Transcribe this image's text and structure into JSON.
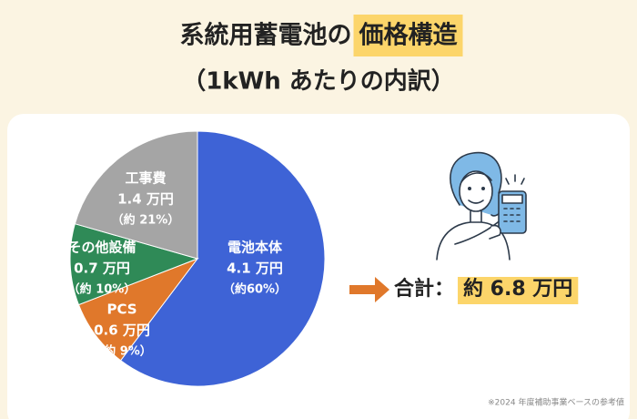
{
  "chart_data": {
    "type": "pie",
    "title": "系統用蓄電池の",
    "title_highlight": "価格構造",
    "subtitle": "（1kWh あたりの内訳）",
    "categories": [
      "電池本体",
      "PCS",
      "その他設備",
      "工事費"
    ],
    "values": [
      4.1,
      0.6,
      0.7,
      1.4
    ],
    "value_labels": [
      "4.1 万円",
      "0.6 万円",
      "0.7 万円",
      "1.4 万円"
    ],
    "percent_labels": [
      "（約60%）",
      "（約 9%）",
      "（約 10%）",
      "（約 21%）"
    ],
    "colors": [
      "#3e63d6",
      "#e0782b",
      "#2f8a57",
      "#a5a5a5"
    ],
    "total_label": "合計：",
    "total_value": "約 6.8 万円",
    "note": "※2024 年度補助事業ベースの参考値"
  }
}
